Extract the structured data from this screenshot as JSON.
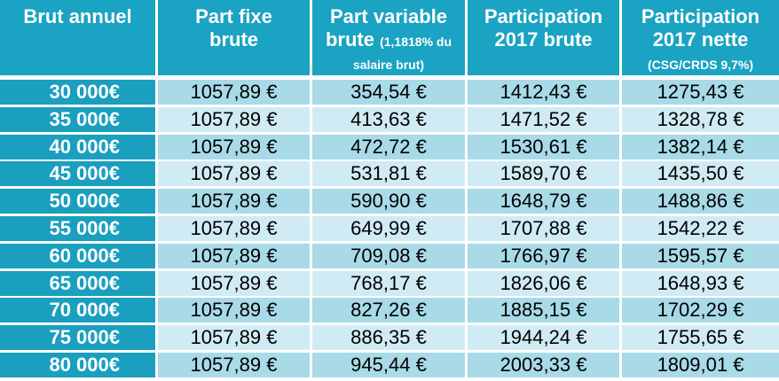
{
  "table": {
    "header": [
      {
        "title": "Brut annuel"
      },
      {
        "title": "Part fixe brute"
      },
      {
        "title": "Part variable brute",
        "note": "(1,1818% du salaire brut)"
      },
      {
        "title": "Participation 2017 brute"
      },
      {
        "title": "Participation 2017 nette",
        "note": "(CSG/CRDS 9,7%)"
      }
    ],
    "rows": [
      [
        "30 000€",
        "1057,89 €",
        "354,54 €",
        "1412,43 €",
        "1275,43 €"
      ],
      [
        "35 000€",
        "1057,89 €",
        "413,63 €",
        "1471,52 €",
        "1328,78 €"
      ],
      [
        "40 000€",
        "1057,89 €",
        "472,72 €",
        "1530,61 €",
        "1382,14 €"
      ],
      [
        "45 000€",
        "1057,89 €",
        "531,81 €",
        "1589,70 €",
        "1435,50 €"
      ],
      [
        "50 000€",
        "1057,89 €",
        "590,90 €",
        "1648,79 €",
        "1488,86 €"
      ],
      [
        "55 000€",
        "1057,89 €",
        "649,99 €",
        "1707,88 €",
        "1542,22 €"
      ],
      [
        "60 000€",
        "1057,89 €",
        "709,08 €",
        "1766,97 €",
        "1595,57 €"
      ],
      [
        "65 000€",
        "1057,89 €",
        "768,17 €",
        "1826,06 €",
        "1648,93 €"
      ],
      [
        "70 000€",
        "1057,89 €",
        "827,26 €",
        "1885,15 €",
        "1702,29 €"
      ],
      [
        "75 000€",
        "1057,89 €",
        "886,35 €",
        "1944,24 €",
        "1755,65 €"
      ],
      [
        "80 000€",
        "1057,89 €",
        "945,44 €",
        "2003,33 €",
        "1809,01 €"
      ]
    ]
  }
}
